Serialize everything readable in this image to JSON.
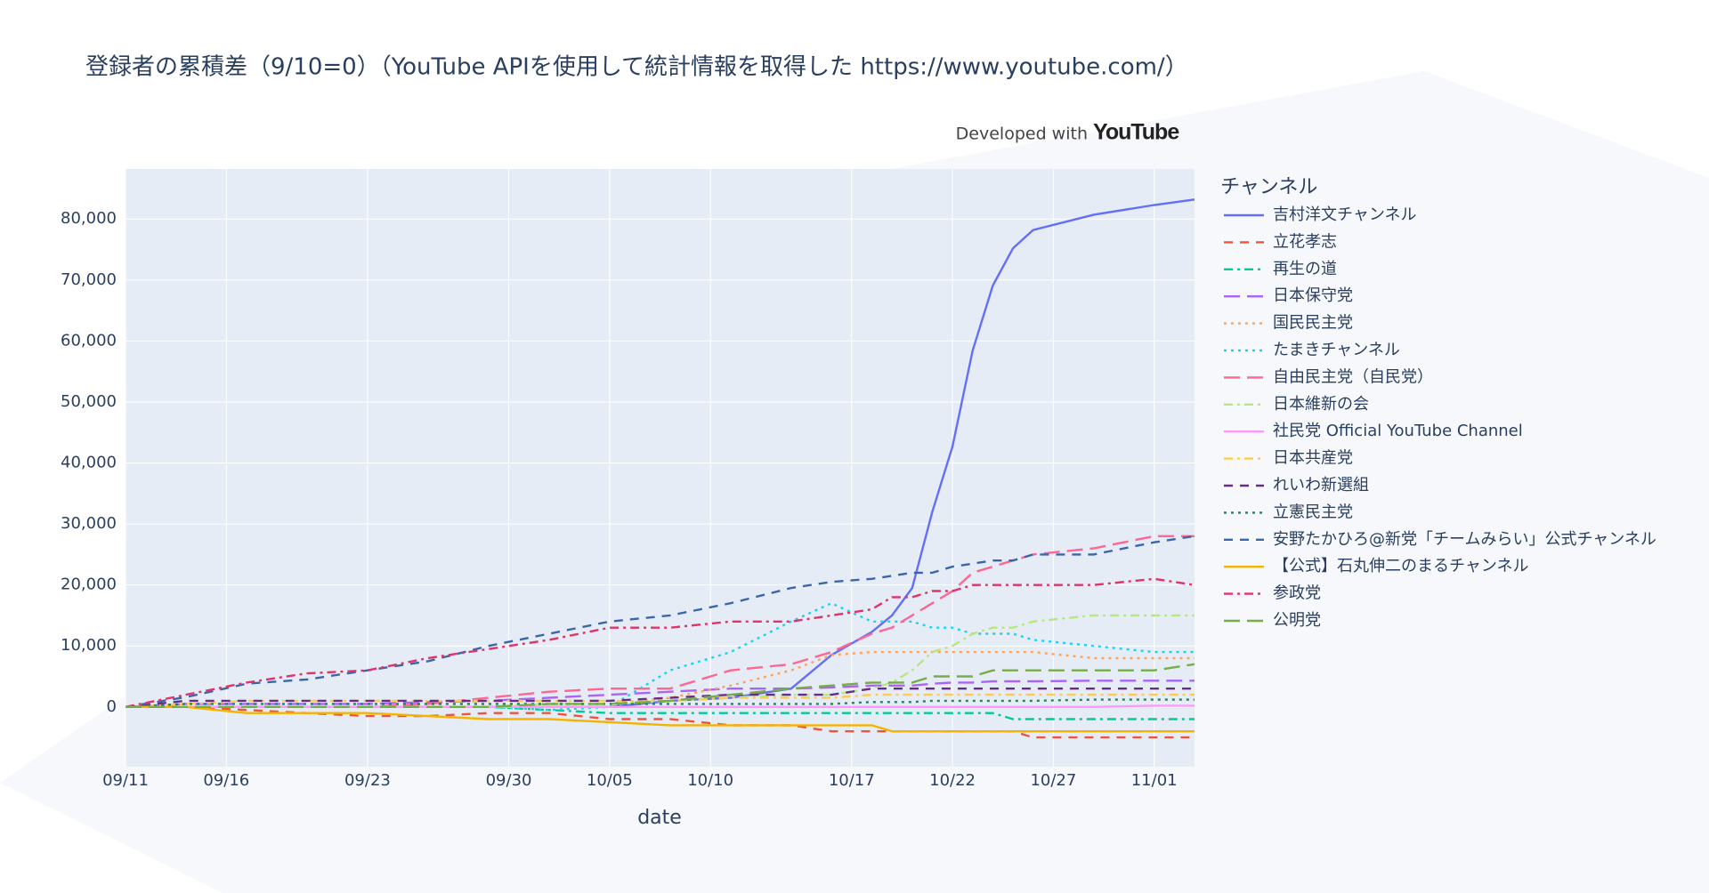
{
  "chart_data": {
    "type": "line",
    "title": "登録者の累積差（9/10=0）（YouTube APIを使用して統計情報を取得した https://www.youtube.com/）",
    "annotations": [
      "Developed with",
      "YouTube"
    ],
    "x_label": "date",
    "legend_title": "チャンネル",
    "legend_position": "right",
    "grid": true,
    "x": [
      "09/11",
      "09/14",
      "09/17",
      "09/20",
      "09/23",
      "09/26",
      "09/29",
      "10/02",
      "10/05",
      "10/08",
      "10/11",
      "10/14",
      "10/16",
      "10/18",
      "10/19",
      "10/20",
      "10/21",
      "10/22",
      "10/23",
      "10/24",
      "10/25",
      "10/26",
      "10/29",
      "11/01",
      "11/03"
    ],
    "xlim": [
      "09/11",
      "11/03"
    ],
    "xticks": [
      "09/11",
      "09/16",
      "09/23",
      "09/30",
      "10/05",
      "10/10",
      "10/17",
      "10/22",
      "10/27",
      "11/01"
    ],
    "ylim": [
      -9800,
      88200
    ],
    "yticks": [
      0,
      {
        "value": 10000,
        "label": "10,000"
      },
      {
        "value": 20000,
        "label": "20,000"
      },
      {
        "value": 30000,
        "label": "30,000"
      },
      {
        "value": 40000,
        "label": "40,000"
      },
      {
        "value": 50000,
        "label": "50,000"
      },
      {
        "value": 60000,
        "label": "60,000"
      },
      {
        "value": 70000,
        "label": "70,000"
      },
      {
        "value": 80000,
        "label": "80,000"
      }
    ],
    "series": [
      {
        "name": "吉村洋文チャンネル",
        "color": "#636efa",
        "dash": "solid",
        "values": [
          0,
          0,
          0,
          0,
          0,
          0,
          0,
          0,
          0,
          1000,
          1500,
          3000,
          8500,
          12300,
          15000,
          19500,
          32000,
          42700,
          58400,
          69100,
          75200,
          78200,
          80700,
          82300,
          83200
        ]
      },
      {
        "name": "立花孝志",
        "color": "#ef553b",
        "dash": "dash",
        "values": [
          0,
          0,
          -500,
          -1000,
          -1500,
          -1500,
          -1000,
          -1000,
          -2000,
          -2000,
          -3000,
          -3000,
          -4000,
          -4000,
          -4000,
          -4000,
          -4000,
          -4000,
          -4000,
          -4000,
          -4000,
          -5000,
          -5000,
          -5000,
          -5000
        ]
      },
      {
        "name": "再生の道",
        "color": "#00cc96",
        "dash": "dashdot",
        "values": [
          0,
          0,
          0,
          0,
          0,
          0,
          0,
          -500,
          -1000,
          -1000,
          -1000,
          -1000,
          -1000,
          -1000,
          -1000,
          -1000,
          -1000,
          -1000,
          -1000,
          -1000,
          -2000,
          -2000,
          -2000,
          -2000,
          -2000
        ]
      },
      {
        "name": "日本保守党",
        "color": "#ab63fa",
        "dash": "longdash",
        "values": [
          0,
          500,
          500,
          500,
          500,
          800,
          1000,
          1500,
          2000,
          2500,
          3000,
          3000,
          3200,
          3500,
          3500,
          3500,
          3800,
          4000,
          4000,
          4200,
          4200,
          4200,
          4300,
          4300,
          4300
        ]
      },
      {
        "name": "国民民主党",
        "color": "#ffa15a",
        "dash": "dot",
        "values": [
          0,
          0,
          0,
          0,
          0,
          500,
          500,
          500,
          500,
          1500,
          3500,
          6000,
          8500,
          9000,
          9000,
          9000,
          9000,
          9000,
          9000,
          9000,
          9000,
          9000,
          8000,
          8000,
          8000
        ]
      },
      {
        "name": "たまきチャンネル",
        "color": "#19d3f3",
        "dash": "dot",
        "values": [
          0,
          0,
          0,
          0,
          0,
          0,
          0,
          -500,
          0,
          6000,
          9000,
          14000,
          17000,
          14000,
          14000,
          14000,
          13000,
          13000,
          12000,
          12000,
          12000,
          11000,
          10000,
          9000,
          9000
        ]
      },
      {
        "name": "自由民主党（自民党）",
        "color": "#ff6692",
        "dash": "longdash",
        "values": [
          0,
          0,
          0,
          0,
          0,
          500,
          1500,
          2500,
          3000,
          3000,
          6000,
          7000,
          9000,
          12000,
          13000,
          15000,
          17000,
          19000,
          22000,
          23000,
          24000,
          25000,
          26000,
          28000,
          28000
        ]
      },
      {
        "name": "日本維新の会",
        "color": "#b6e880",
        "dash": "dashdot",
        "values": [
          0,
          0,
          0,
          0,
          0,
          0,
          0,
          500,
          500,
          1000,
          1500,
          2000,
          2000,
          3000,
          4000,
          6000,
          9000,
          10000,
          12000,
          13000,
          13000,
          14000,
          15000,
          15000,
          15000
        ]
      },
      {
        "name": "社民党 Official YouTube Channel",
        "color": "#ff97ff",
        "dash": "solid",
        "values": [
          0,
          0,
          0,
          0,
          0,
          0,
          0,
          0,
          0,
          0,
          0,
          0,
          0,
          0,
          0,
          0,
          0,
          0,
          0,
          0,
          0,
          0,
          0,
          200,
          200
        ]
      },
      {
        "name": "日本共産党",
        "color": "#fecb52",
        "dash": "dashdot",
        "values": [
          0,
          500,
          1000,
          1000,
          1000,
          1000,
          1000,
          1000,
          1000,
          1000,
          1500,
          1500,
          1500,
          2000,
          2000,
          2000,
          2000,
          2000,
          2000,
          2000,
          2000,
          2000,
          2000,
          2000,
          2000
        ]
      },
      {
        "name": "れいわ新選組",
        "color": "#6a2c86",
        "dash": "dash",
        "values": [
          0,
          1000,
          1000,
          1000,
          1000,
          1000,
          1000,
          1000,
          1000,
          1500,
          2000,
          2000,
          2000,
          3000,
          3000,
          3000,
          3000,
          3000,
          3000,
          3000,
          3000,
          3000,
          3000,
          3000,
          3000
        ]
      },
      {
        "name": "立憲民主党",
        "color": "#0a8f55",
        "dash": "dot",
        "values": [
          0,
          500,
          500,
          500,
          500,
          500,
          500,
          500,
          500,
          500,
          500,
          500,
          500,
          800,
          800,
          800,
          1000,
          1000,
          1000,
          1000,
          1000,
          1000,
          1200,
          1200,
          1200
        ]
      },
      {
        "name": "安野たかひろ@新党「チームみらい」公式チャンネル",
        "color": "#3a67aa",
        "dash": "dash",
        "values": [
          0,
          1600,
          3800,
          4500,
          6000,
          7500,
          10000,
          12000,
          14000,
          15000,
          17000,
          19500,
          20500,
          21000,
          21500,
          22000,
          22000,
          23000,
          23500,
          24000,
          24000,
          25000,
          25000,
          27000,
          28000
        ]
      },
      {
        "name": "【公式】石丸伸二のまるチャンネル",
        "color": "#f5b300",
        "dash": "solid",
        "values": [
          0,
          0,
          -1000,
          -1000,
          -1000,
          -1500,
          -2000,
          -2000,
          -2500,
          -3000,
          -3000,
          -3000,
          -3000,
          -3000,
          -4000,
          -4000,
          -4000,
          -4000,
          -4000,
          -4000,
          -4000,
          -4000,
          -4000,
          -4000,
          -4000
        ]
      },
      {
        "name": "参政党",
        "color": "#e0336a",
        "dash": "dashdot",
        "values": [
          0,
          2000,
          4000,
          5500,
          6000,
          8000,
          9500,
          11000,
          13000,
          13000,
          14000,
          14000,
          15000,
          16000,
          18000,
          18000,
          19000,
          19000,
          20000,
          20000,
          20000,
          20000,
          20000,
          21000,
          20000
        ]
      },
      {
        "name": "公明党",
        "color": "#77ad46",
        "dash": "longdash",
        "values": [
          0,
          0,
          0,
          0,
          0,
          0,
          0,
          500,
          500,
          1000,
          2000,
          3000,
          3500,
          4000,
          4000,
          4000,
          5000,
          5000,
          5000,
          6000,
          6000,
          6000,
          6000,
          6000,
          7000
        ]
      }
    ]
  }
}
